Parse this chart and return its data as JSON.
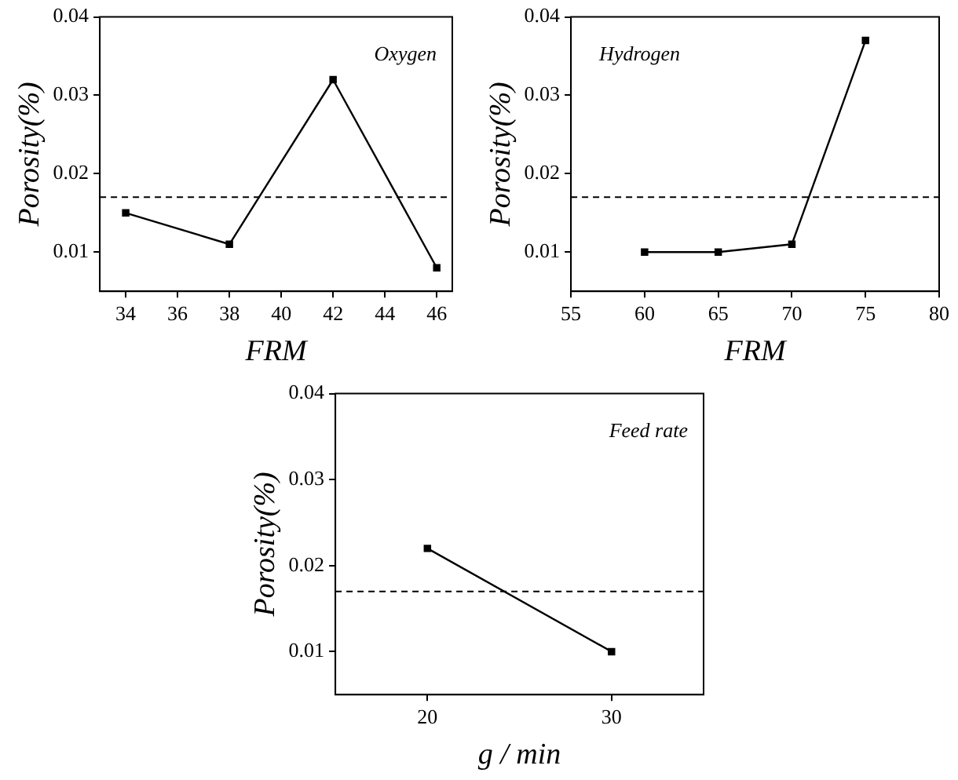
{
  "chart_data": [
    {
      "type": "line",
      "xlabel": "FRM",
      "ylabel": "Porosity(%)",
      "annotations": [
        "Oxygen"
      ],
      "x": [
        34,
        38,
        42,
        46
      ],
      "series": [
        {
          "color": "#000000",
          "values": [
            0.015,
            0.011,
            0.032,
            0.008
          ]
        }
      ],
      "xlim": [
        33,
        46.6
      ],
      "xticks": [
        34,
        36,
        38,
        40,
        42,
        44,
        46
      ],
      "ylim": [
        0.005,
        0.04
      ],
      "yticks": [
        0.01,
        0.02,
        0.03,
        0.04
      ],
      "ref_lines": [
        {
          "axis": "y",
          "value": 0.017,
          "label": null,
          "color": "#000000",
          "line_style": "dashed"
        }
      ],
      "grid": false,
      "legend": false,
      "marker": "square",
      "line_style": "solid"
    },
    {
      "type": "line",
      "xlabel": "FRM",
      "ylabel": "Porosity(%)",
      "annotations": [
        "Hydrogen"
      ],
      "x": [
        60,
        65,
        70,
        75
      ],
      "series": [
        {
          "color": "#000000",
          "values": [
            0.01,
            0.01,
            0.011,
            0.037
          ]
        }
      ],
      "xlim": [
        55,
        80
      ],
      "xticks": [
        55,
        60,
        65,
        70,
        75,
        80
      ],
      "ylim": [
        0.005,
        0.04
      ],
      "yticks": [
        0.01,
        0.02,
        0.03,
        0.04
      ],
      "ref_lines": [
        {
          "axis": "y",
          "value": 0.017,
          "label": null,
          "color": "#000000",
          "line_style": "dashed"
        }
      ],
      "grid": false,
      "legend": false,
      "marker": "square",
      "line_style": "solid"
    },
    {
      "type": "line",
      "xlabel": "g / min",
      "ylabel": "Porosity(%)",
      "annotations": [
        "Feed rate"
      ],
      "x": [
        20,
        30
      ],
      "series": [
        {
          "color": "#000000",
          "values": [
            0.022,
            0.01
          ]
        }
      ],
      "xlim": [
        15,
        35
      ],
      "xticks": [
        20,
        30
      ],
      "ylim": [
        0.005,
        0.04
      ],
      "yticks": [
        0.01,
        0.02,
        0.03,
        0.04
      ],
      "ref_lines": [
        {
          "axis": "y",
          "value": 0.017,
          "label": null,
          "color": "#000000",
          "line_style": "dashed"
        }
      ],
      "grid": false,
      "legend": false,
      "marker": "square",
      "line_style": "solid"
    }
  ]
}
